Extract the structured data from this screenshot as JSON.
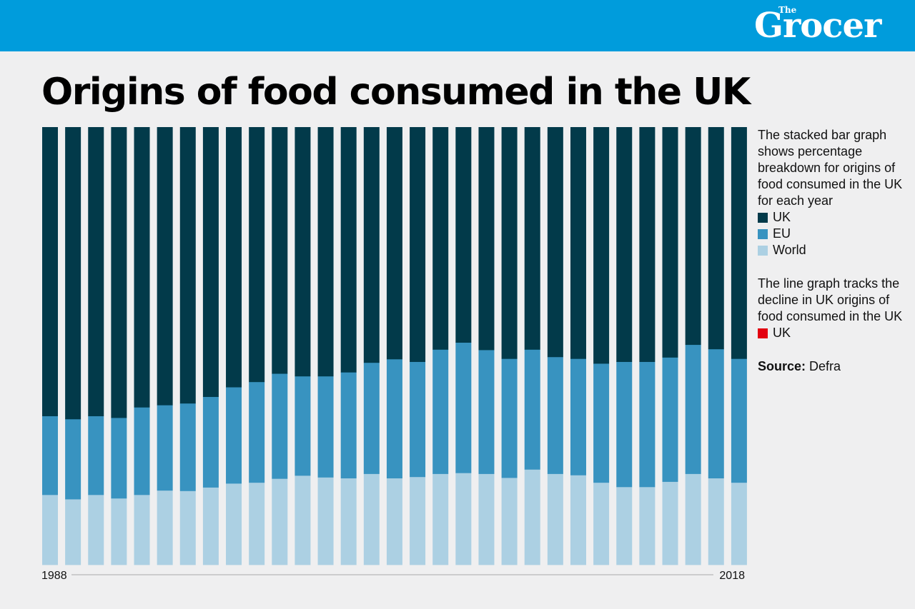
{
  "brand": {
    "small": "The",
    "name": "Grocer"
  },
  "title": "Origins of food consumed in the UK",
  "legend": {
    "bar_description": "The stacked bar graph shows percentage breakdown for origins of food consumed in the UK for each year",
    "items": [
      {
        "label": "UK",
        "color": "#023a4a"
      },
      {
        "label": "EU",
        "color": "#3893c0"
      },
      {
        "label": "World",
        "color": "#acd0e3"
      }
    ],
    "line_description": "The line graph tracks the decline in UK origins of food consumed in the UK",
    "line_item": {
      "label": "UK",
      "color": "#e3000f"
    },
    "source_label": "Source:",
    "source": "Defra"
  },
  "colors": {
    "header": "#009cdc",
    "background": "#efeff0"
  },
  "chart_data": {
    "type": "bar",
    "stacked": true,
    "start_label": "1988",
    "end_label": "2018",
    "categories": [
      "1988",
      "1989",
      "1990",
      "1991",
      "1992",
      "1993",
      "1994",
      "1995",
      "1996",
      "1997",
      "1998",
      "1999",
      "2000",
      "2001",
      "2002",
      "2003",
      "2004",
      "2005",
      "2006",
      "2007",
      "2008",
      "2009",
      "2010",
      "2011",
      "2012",
      "2013",
      "2014",
      "2015",
      "2016",
      "2017",
      "2018"
    ],
    "series": [
      {
        "name": "World",
        "color": "#acd0e3",
        "values": [
          16.0,
          15.0,
          16.0,
          15.2,
          16.0,
          17.0,
          16.9,
          17.7,
          18.6,
          18.8,
          19.7,
          20.4,
          20.0,
          19.8,
          20.8,
          19.8,
          20.1,
          20.8,
          21.0,
          20.8,
          19.9,
          21.8,
          20.8,
          20.5,
          18.8,
          17.8,
          17.8,
          19.0,
          20.8,
          19.8,
          18.8
        ]
      },
      {
        "name": "EU",
        "color": "#3893c0",
        "values": [
          18.0,
          18.3,
          18.0,
          18.4,
          20.0,
          19.5,
          20.0,
          20.7,
          22.0,
          23.0,
          24.0,
          22.7,
          23.1,
          24.2,
          25.4,
          27.2,
          26.3,
          28.4,
          29.8,
          28.3,
          27.2,
          27.4,
          26.7,
          26.6,
          27.2,
          28.6,
          28.6,
          28.4,
          29.5,
          29.5,
          28.3
        ]
      },
      {
        "name": "UK",
        "color": "#023a4a",
        "values": [
          66.0,
          66.7,
          66.0,
          66.4,
          64.0,
          63.5,
          63.1,
          61.6,
          59.4,
          58.2,
          56.3,
          56.9,
          56.9,
          56.0,
          53.8,
          53.0,
          53.6,
          50.8,
          49.2,
          50.9,
          52.9,
          50.8,
          52.5,
          52.9,
          54.0,
          53.6,
          53.6,
          52.6,
          49.7,
          50.7,
          52.9
        ]
      }
    ],
    "ylim": [
      0,
      100
    ]
  }
}
